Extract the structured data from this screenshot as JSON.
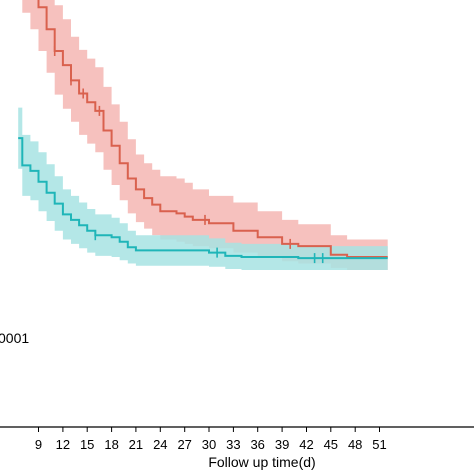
{
  "chart_data": {
    "type": "line",
    "subtype": "kaplan-meier",
    "title": "",
    "xlabel": "Follow up time(d)",
    "ylabel": "",
    "xlim": [
      6.5,
      52
    ],
    "ylim": [
      0,
      1
    ],
    "x_ticks": [
      9,
      12,
      15,
      18,
      21,
      24,
      27,
      30,
      33,
      36,
      39,
      42,
      45,
      48,
      51
    ],
    "x_tick_labels": [
      "9",
      "12",
      "15",
      "18",
      "21",
      "24",
      "27",
      "30",
      "33",
      "36",
      "39",
      "42",
      "45",
      "48",
      "51"
    ],
    "grid": false,
    "legend": "none",
    "annotation": "0001",
    "series": [
      {
        "color": "#d9614e",
        "band_color": "#f4b6b3",
        "points": [
          [
            6.5,
            0.435
          ],
          [
            7.0,
            0.42
          ],
          [
            8.0,
            0.405
          ],
          [
            9.0,
            0.385
          ],
          [
            10.0,
            0.365
          ],
          [
            11.0,
            0.345
          ],
          [
            12.0,
            0.332
          ],
          [
            13.0,
            0.318
          ],
          [
            14.0,
            0.306
          ],
          [
            15.0,
            0.298
          ],
          [
            16.0,
            0.29
          ],
          [
            17.0,
            0.272
          ],
          [
            18.0,
            0.258
          ],
          [
            19.0,
            0.242
          ],
          [
            20.0,
            0.228
          ],
          [
            21.0,
            0.218
          ],
          [
            22.0,
            0.21
          ],
          [
            23.0,
            0.204
          ],
          [
            24.0,
            0.198
          ],
          [
            26.0,
            0.196
          ],
          [
            27.0,
            0.193
          ],
          [
            28.0,
            0.19
          ],
          [
            30.0,
            0.187
          ],
          [
            33.0,
            0.18
          ],
          [
            36.0,
            0.174
          ],
          [
            39.0,
            0.168
          ],
          [
            41.0,
            0.166
          ],
          [
            45.0,
            0.158
          ],
          [
            47.0,
            0.156
          ],
          [
            52.0,
            0.156
          ]
        ],
        "lower": [
          [
            6.5,
            0.395
          ],
          [
            7.0,
            0.38
          ],
          [
            8.0,
            0.365
          ],
          [
            9.0,
            0.345
          ],
          [
            10.0,
            0.325
          ],
          [
            11.0,
            0.305
          ],
          [
            12.0,
            0.292
          ],
          [
            13.0,
            0.28
          ],
          [
            14.0,
            0.268
          ],
          [
            15.0,
            0.26
          ],
          [
            16.0,
            0.252
          ],
          [
            17.0,
            0.236
          ],
          [
            18.0,
            0.222
          ],
          [
            19.0,
            0.208
          ],
          [
            20.0,
            0.196
          ],
          [
            21.0,
            0.188
          ],
          [
            22.0,
            0.182
          ],
          [
            23.0,
            0.176
          ],
          [
            24.0,
            0.172
          ],
          [
            26.0,
            0.17
          ],
          [
            27.0,
            0.168
          ],
          [
            28.0,
            0.166
          ],
          [
            30.0,
            0.164
          ],
          [
            33.0,
            0.16
          ],
          [
            36.0,
            0.156
          ],
          [
            39.0,
            0.152
          ],
          [
            41.0,
            0.15
          ],
          [
            45.0,
            0.146
          ],
          [
            47.0,
            0.144
          ],
          [
            52.0,
            0.144
          ]
        ],
        "upper": [
          [
            6.5,
            0.475
          ],
          [
            7.0,
            0.46
          ],
          [
            8.0,
            0.445
          ],
          [
            9.0,
            0.425
          ],
          [
            10.0,
            0.405
          ],
          [
            11.0,
            0.387
          ],
          [
            12.0,
            0.374
          ],
          [
            13.0,
            0.358
          ],
          [
            14.0,
            0.346
          ],
          [
            15.0,
            0.338
          ],
          [
            16.0,
            0.33
          ],
          [
            17.0,
            0.312
          ],
          [
            18.0,
            0.296
          ],
          [
            19.0,
            0.28
          ],
          [
            20.0,
            0.264
          ],
          [
            21.0,
            0.25
          ],
          [
            22.0,
            0.242
          ],
          [
            23.0,
            0.236
          ],
          [
            24.0,
            0.23
          ],
          [
            26.0,
            0.228
          ],
          [
            27.0,
            0.224
          ],
          [
            28.0,
            0.218
          ],
          [
            30.0,
            0.212
          ],
          [
            33.0,
            0.206
          ],
          [
            36.0,
            0.198
          ],
          [
            39.0,
            0.19
          ],
          [
            41.0,
            0.186
          ],
          [
            45.0,
            0.176
          ],
          [
            47.0,
            0.172
          ],
          [
            52.0,
            0.172
          ]
        ],
        "censor_x": [
          8.0,
          11.0,
          13.0,
          14.5,
          16.5,
          29.5,
          40.0
        ]
      },
      {
        "color": "#1fb5b8",
        "band_color": "#a7e3e3",
        "points": [
          [
            6.5,
            0.265
          ],
          [
            7.0,
            0.24
          ],
          [
            8.0,
            0.235
          ],
          [
            9.0,
            0.225
          ],
          [
            10.0,
            0.215
          ],
          [
            11.0,
            0.205
          ],
          [
            12.0,
            0.195
          ],
          [
            13.0,
            0.19
          ],
          [
            14.0,
            0.185
          ],
          [
            15.0,
            0.18
          ],
          [
            16.0,
            0.176
          ],
          [
            18.0,
            0.174
          ],
          [
            19.0,
            0.17
          ],
          [
            20.0,
            0.165
          ],
          [
            21.0,
            0.162
          ],
          [
            24.0,
            0.162
          ],
          [
            30.0,
            0.16
          ],
          [
            32.0,
            0.157
          ],
          [
            34.0,
            0.156
          ],
          [
            41.0,
            0.155
          ],
          [
            52.0,
            0.155
          ]
        ],
        "lower": [
          [
            6.5,
            0.237
          ],
          [
            7.0,
            0.212
          ],
          [
            8.0,
            0.208
          ],
          [
            9.0,
            0.198
          ],
          [
            10.0,
            0.189
          ],
          [
            11.0,
            0.18
          ],
          [
            12.0,
            0.172
          ],
          [
            13.0,
            0.168
          ],
          [
            14.0,
            0.164
          ],
          [
            15.0,
            0.16
          ],
          [
            16.0,
            0.157
          ],
          [
            18.0,
            0.156
          ],
          [
            19.0,
            0.153
          ],
          [
            20.0,
            0.15
          ],
          [
            21.0,
            0.148
          ],
          [
            24.0,
            0.148
          ],
          [
            30.0,
            0.147
          ],
          [
            32.0,
            0.145
          ],
          [
            34.0,
            0.144
          ],
          [
            41.0,
            0.144
          ],
          [
            52.0,
            0.144
          ]
        ],
        "upper": [
          [
            6.5,
            0.293
          ],
          [
            7.0,
            0.268
          ],
          [
            8.0,
            0.262
          ],
          [
            9.0,
            0.252
          ],
          [
            10.0,
            0.241
          ],
          [
            11.0,
            0.23
          ],
          [
            12.0,
            0.218
          ],
          [
            13.0,
            0.212
          ],
          [
            14.0,
            0.206
          ],
          [
            15.0,
            0.2
          ],
          [
            16.0,
            0.195
          ],
          [
            18.0,
            0.192
          ],
          [
            19.0,
            0.187
          ],
          [
            20.0,
            0.18
          ],
          [
            21.0,
            0.176
          ],
          [
            24.0,
            0.176
          ],
          [
            30.0,
            0.173
          ],
          [
            32.0,
            0.169
          ],
          [
            34.0,
            0.168
          ],
          [
            41.0,
            0.166
          ],
          [
            52.0,
            0.166
          ]
        ],
        "censor_x": [
          16.0,
          31.0,
          43.0,
          44.0
        ]
      }
    ]
  }
}
